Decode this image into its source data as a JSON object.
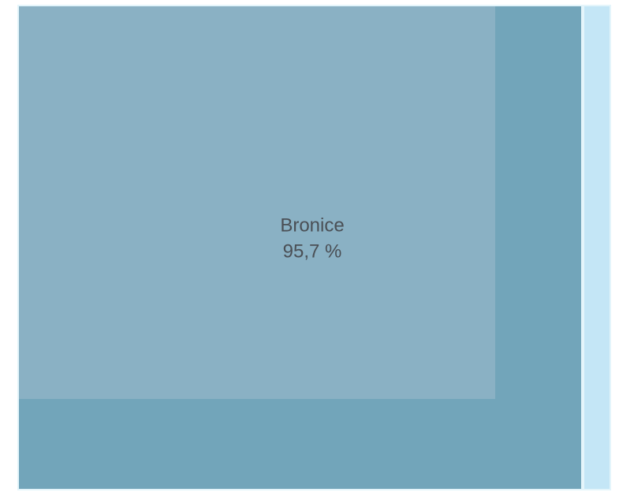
{
  "chart_data": {
    "type": "treemap",
    "categories": [
      "Bronice"
    ],
    "values": [
      95.7
    ],
    "value_labels": [
      "95,7 %"
    ],
    "color": "#8ab1c4"
  }
}
